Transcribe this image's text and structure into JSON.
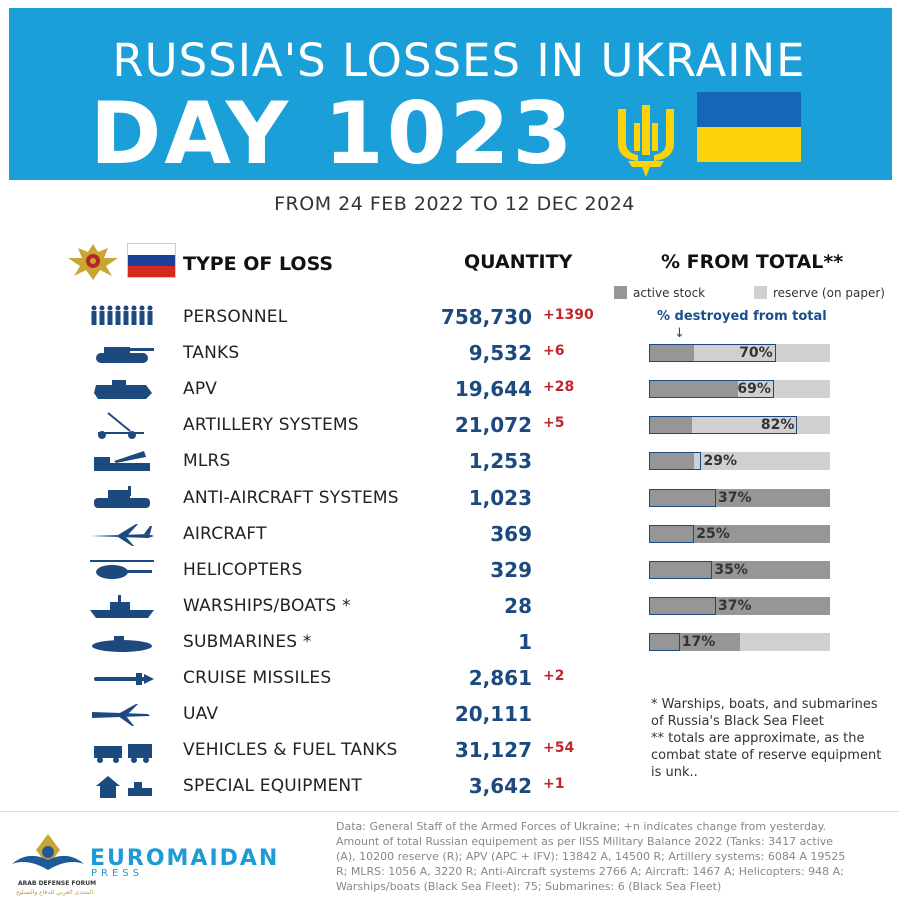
{
  "header": {
    "title": "RUSSIA'S LOSSES IN UKRAINE",
    "day": "DAY 1023",
    "date_range": "FROM 24 FEB 2022 TO 12 DEC 2024"
  },
  "columns": {
    "type": "TYPE OF LOSS",
    "quantity": "QUANTITY",
    "percent": "% FROM TOTAL**"
  },
  "legend": {
    "active": "active stock",
    "reserve": "reserve (on paper)",
    "destroyed_note": "% destroyed from total",
    "arrow": "↓",
    "active_color": "#969696",
    "reserve_color": "#d0d0d0"
  },
  "chart_data": {
    "type": "table",
    "rows": [
      {
        "name": "PERSONNEL",
        "quantity": "758,730",
        "change": "+1390",
        "icon": "soldiers-icon"
      },
      {
        "name": "TANKS",
        "quantity": "9,532",
        "change": "+6",
        "icon": "tank-icon",
        "pct_label": "70%",
        "destroyed": 0.7,
        "active_share": 0.25
      },
      {
        "name": "APV",
        "quantity": "19,644",
        "change": "+28",
        "icon": "apv-icon",
        "pct_label": "69%",
        "destroyed": 0.69,
        "active_share": 0.49
      },
      {
        "name": "ARTILLERY SYSTEMS",
        "quantity": "21,072",
        "change": "+5",
        "icon": "artillery-icon",
        "pct_label": "82%",
        "destroyed": 0.82,
        "active_share": 0.24
      },
      {
        "name": "MLRS",
        "quantity": "1,253",
        "change": "",
        "icon": "mlrs-icon",
        "pct_label": "29%",
        "destroyed": 0.29,
        "active_share": 0.25
      },
      {
        "name": "ANTI-AIRCRAFT SYSTEMS",
        "quantity": "1,023",
        "change": "",
        "icon": "anti-aircraft-icon",
        "pct_label": "37%",
        "destroyed": 0.37,
        "active_share": 1.0
      },
      {
        "name": "AIRCRAFT",
        "quantity": "369",
        "change": "",
        "icon": "aircraft-icon",
        "pct_label": "25%",
        "destroyed": 0.25,
        "active_share": 1.0
      },
      {
        "name": "HELICOPTERS",
        "quantity": "329",
        "change": "",
        "icon": "helicopter-icon",
        "pct_label": "35%",
        "destroyed": 0.35,
        "active_share": 1.0
      },
      {
        "name": "WARSHIPS/BOATS *",
        "quantity": "28",
        "change": "",
        "icon": "warship-icon",
        "pct_label": "37%",
        "destroyed": 0.37,
        "active_share": 1.0
      },
      {
        "name": "SUBMARINES *",
        "quantity": "1",
        "change": "",
        "icon": "submarine-icon",
        "pct_label": "17%",
        "destroyed": 0.17,
        "active_share": 0.5
      },
      {
        "name": "CRUISE MISSILES",
        "quantity": "2,861",
        "change": "+2",
        "icon": "cruise-missile-icon"
      },
      {
        "name": "UAV",
        "quantity": "20,111",
        "change": "",
        "icon": "uav-icon"
      },
      {
        "name": "VEHICLES & FUEL TANKS",
        "quantity": "31,127",
        "change": "+54",
        "icon": "vehicles-icon"
      },
      {
        "name": "SPECIAL EQUIPMENT",
        "quantity": "3,642",
        "change": "+1",
        "icon": "special-equipment-icon"
      }
    ]
  },
  "notes": [
    "* Warships, boats, and submarines of Russia's Black Sea Fleet",
    "** totals are approximate, as the combat state of reserve equipment is unk.."
  ],
  "source": "Data: General Staff of the Armed Forces of Ukraine; +n indicates change from yesterday. Amount of total Russian equipement as per IISS Military Balance 2022 (Tanks: 3417 active (A), 10200 reserve (R); APV (APC + IFV): 13842 A, 14500 R; Artillery systems: 6084 A 19525 R; MLRS: 1056 A, 3220 R; Anti-Aircraft systems 2766 A; Aircraft: 1467 A; Helicopters: 948 A; Warships/boats (Black Sea Fleet): 75; Submarines: 6 (Black Sea Fleet)",
  "logo": {
    "name": "EUROMAIDAN",
    "press": "PRESS",
    "forum": "ARAB DEFENSE FORUM",
    "arabic": "المنتدى العربي للدفاع والتسليح"
  },
  "colors": {
    "banner": "#1b9fd9",
    "quantity": "#1c4a7e",
    "change": "#c0262c",
    "ukraine_blue": "#1566b7",
    "ukraine_yellow": "#fcd20a"
  }
}
